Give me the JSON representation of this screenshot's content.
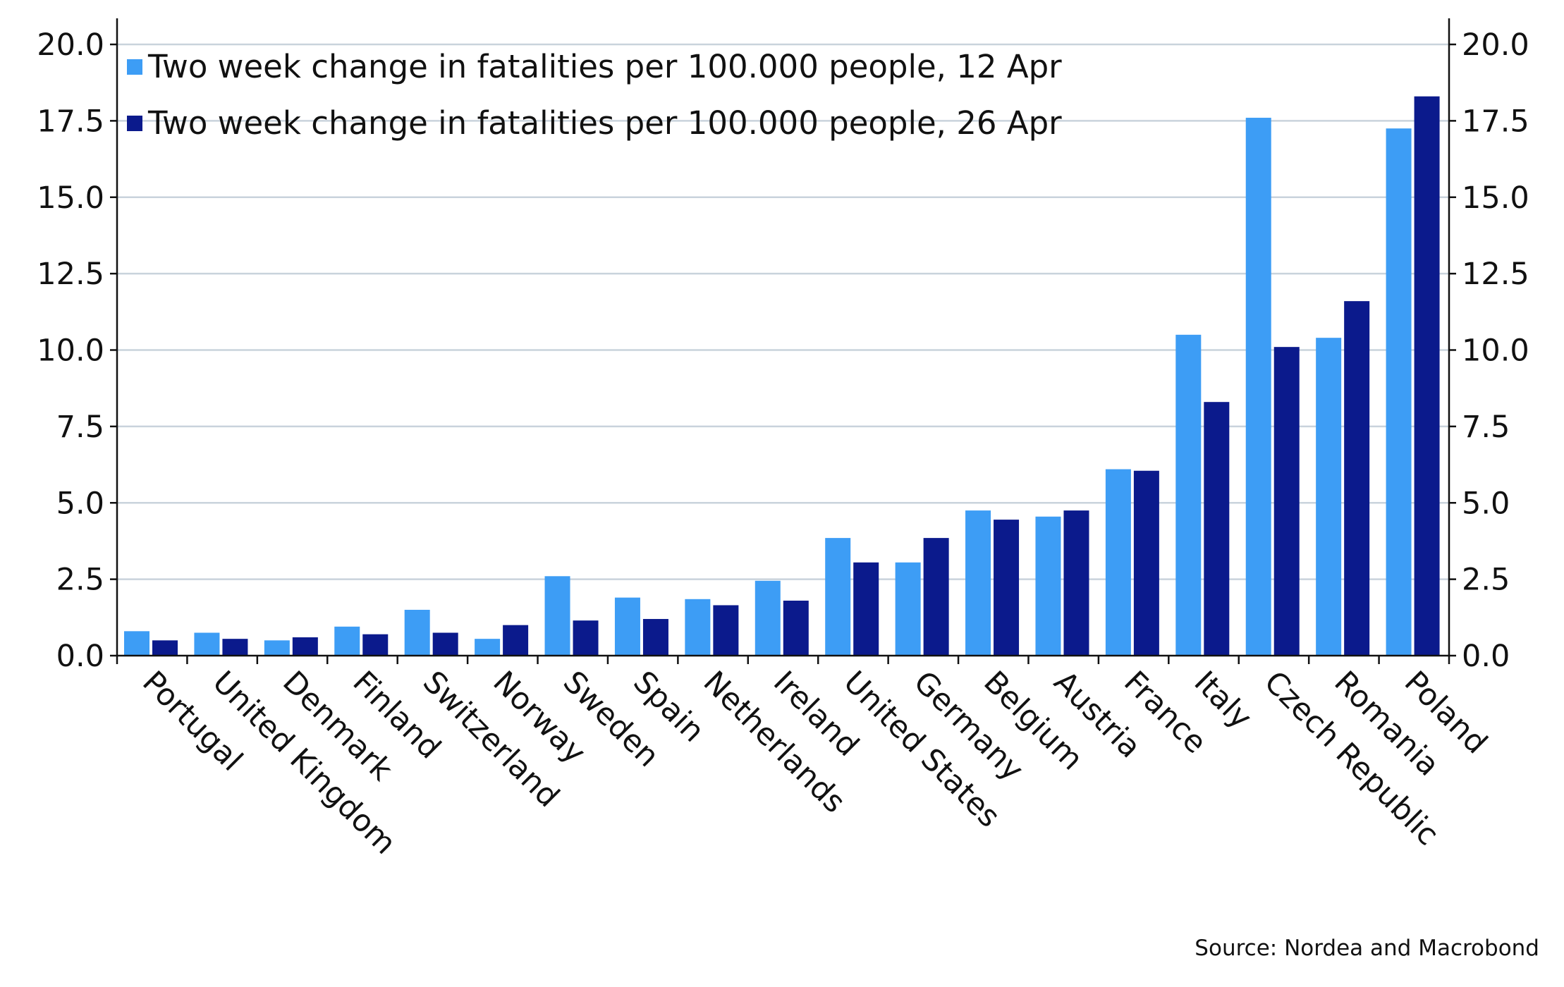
{
  "chart_data": {
    "type": "bar",
    "categories": [
      "Portugal",
      "United Kingdom",
      "Denmark",
      "Finland",
      "Switzerland",
      "Norway",
      "Sweden",
      "Spain",
      "Netherlands",
      "Ireland",
      "United States",
      "Germany",
      "Belgium",
      "Austria",
      "France",
      "Italy",
      "Czech Republic",
      "Romania",
      "Poland"
    ],
    "series": [
      {
        "name": "Two week change in fatalities per 100.000 people, 12 Apr",
        "color": "#3d9df5",
        "values": [
          0.8,
          0.75,
          0.5,
          0.95,
          1.5,
          0.55,
          2.6,
          1.9,
          1.85,
          2.45,
          3.85,
          3.05,
          4.75,
          4.55,
          6.1,
          10.5,
          17.6,
          10.4,
          17.25
        ]
      },
      {
        "name": "Two week change in fatalities per 100.000 people, 26 Apr",
        "color": "#0b1a8c",
        "values": [
          0.5,
          0.55,
          0.6,
          0.7,
          0.75,
          1.0,
          1.15,
          1.2,
          1.65,
          1.8,
          3.05,
          3.85,
          4.45,
          4.75,
          6.05,
          8.3,
          10.1,
          11.6,
          18.3
        ]
      }
    ],
    "ylim": [
      0,
      20
    ],
    "yticks": [
      "0.0",
      "2.5",
      "5.0",
      "7.5",
      "10.0",
      "12.5",
      "15.0",
      "17.5",
      "20.0"
    ],
    "ytick_values": [
      0,
      2.5,
      5,
      7.5,
      10,
      12.5,
      15,
      17.5,
      20
    ],
    "grid": true,
    "legend_position": "top-left",
    "source": "Source: Nordea and Macrobond",
    "title": "",
    "xlabel": "",
    "ylabel": ""
  }
}
